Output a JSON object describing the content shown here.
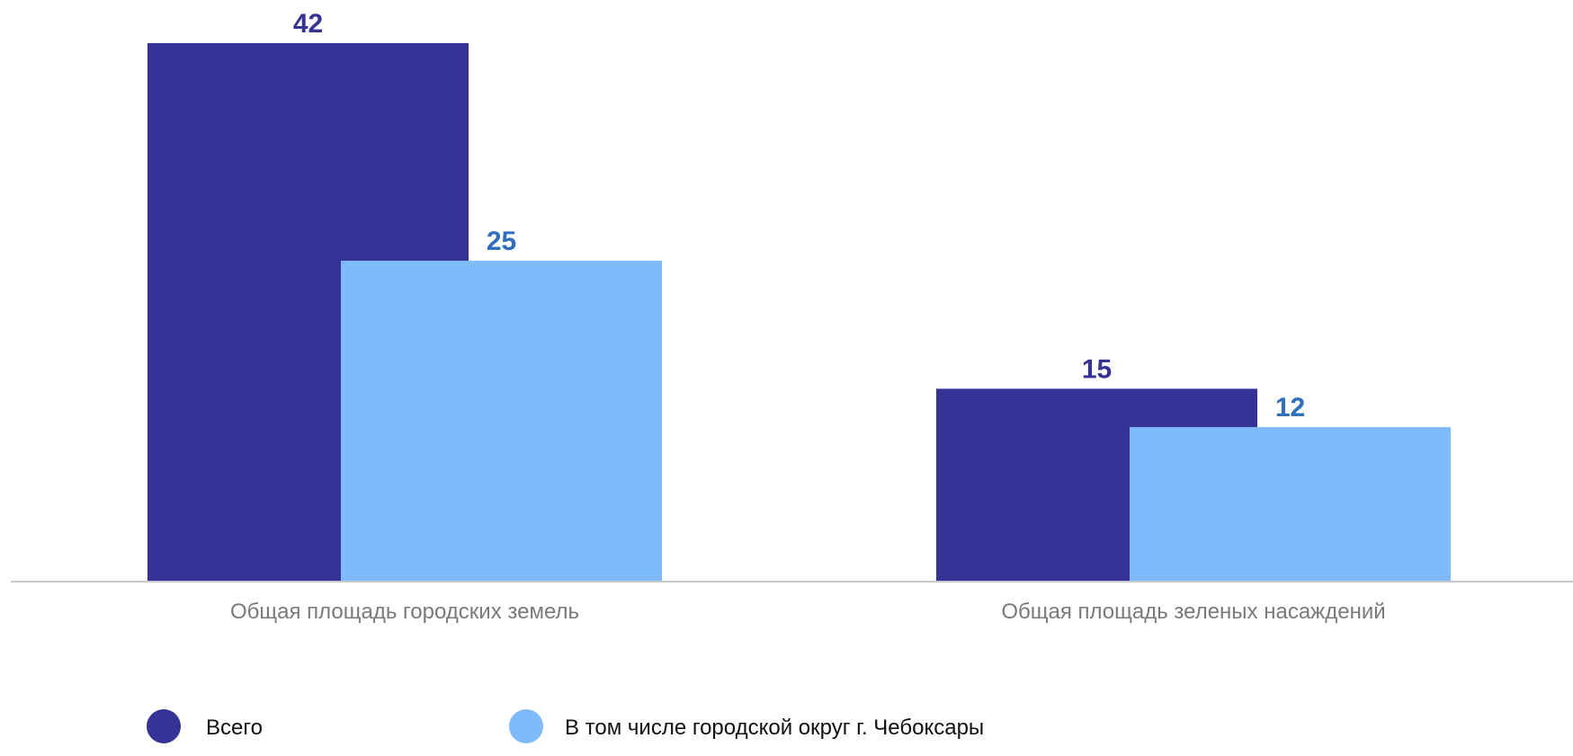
{
  "chart_data": {
    "type": "bar",
    "categories": [
      "Общая площадь городских земель",
      "Общая площадь зеленых насаждений"
    ],
    "series": [
      {
        "name": "Всего",
        "values": [
          42,
          15
        ],
        "color": "#363397",
        "label_color": "#363397"
      },
      {
        "name": "В том числе городской округ г. Чебоксары",
        "values": [
          25,
          12
        ],
        "color": "#7fbbfa",
        "label_color": "#2f6fc0"
      }
    ],
    "title": "",
    "xlabel": "",
    "ylabel": "",
    "ylim": [
      0,
      42
    ],
    "grid": false,
    "legend": "bottom-left",
    "data_labels": true,
    "axis_color": "#c8c8c8"
  }
}
